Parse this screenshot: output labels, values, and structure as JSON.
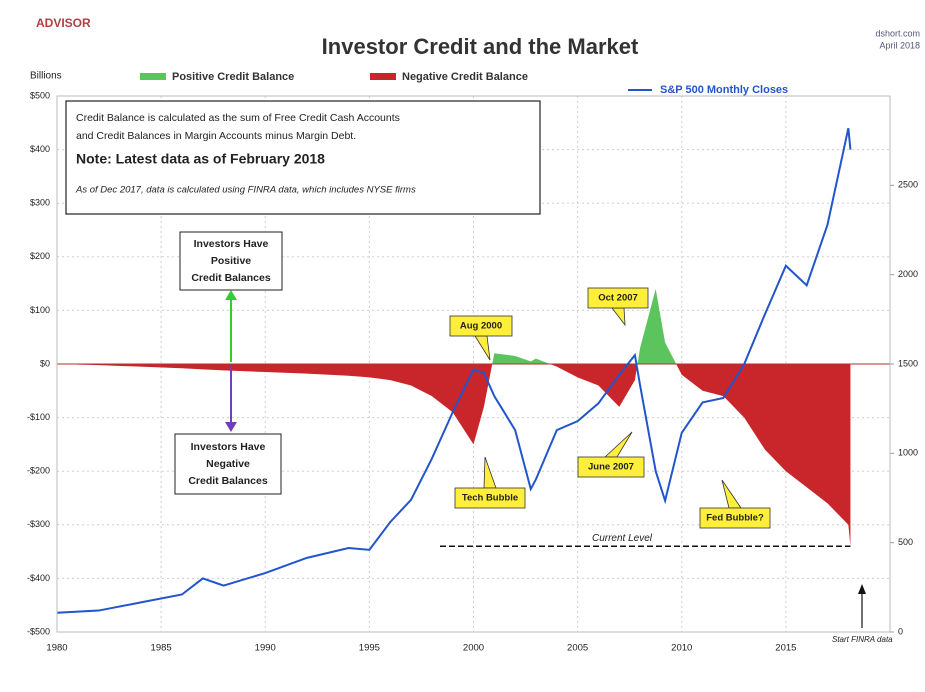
{
  "chart_data": {
    "type": "area_line",
    "title": "Investor Credit and the Market",
    "logo": "ADVISOR",
    "source": [
      "dshort.com",
      "April 2018"
    ],
    "y_label": "Billions",
    "legend": [
      {
        "label": "Positive Credit Balance",
        "color": "#5cc45c"
      },
      {
        "label": "Negative Credit Balance",
        "color": "#c9262c"
      }
    ],
    "x": [
      1980,
      1982,
      1984,
      1986,
      1987,
      1988,
      1990,
      1992,
      1994,
      1995,
      1996,
      1997,
      1998,
      1999,
      2000,
      2000.5,
      2001,
      2002,
      2002.75,
      2003,
      2004,
      2005,
      2006,
      2007,
      2007.75,
      2008,
      2008.75,
      2009.2,
      2010,
      2011,
      2012,
      2013,
      2014,
      2015,
      2016,
      2017,
      2018,
      2018.1
    ],
    "series": [
      {
        "values": [
          0,
          -2,
          -5,
          -8,
          -10,
          -12,
          -15,
          -18,
          -22,
          -25,
          -30,
          -40,
          -60,
          -90,
          -150,
          -80,
          20,
          15,
          5,
          10,
          -5,
          -25,
          -40,
          -80,
          -30,
          30,
          140,
          40,
          -20,
          -50,
          -60,
          -100,
          -160,
          -200,
          -230,
          -260,
          -300,
          -340
        ]
      },
      {
        "name": "S&P 500 Monthly Closes",
        "color": "#2255cc",
        "axis": "y2",
        "values": [
          108,
          120,
          165,
          210,
          300,
          260,
          330,
          415,
          470,
          460,
          615,
          740,
          970,
          1230,
          1470,
          1450,
          1320,
          1130,
          800,
          855,
          1130,
          1180,
          1280,
          1440,
          1550,
          1380,
          900,
          735,
          1115,
          1285,
          1310,
          1500,
          1780,
          2050,
          1940,
          2280,
          2820,
          2700
        ]
      }
    ],
    "xlim": [
      1980,
      2020
    ],
    "xticks": [
      1980,
      1985,
      1990,
      1995,
      2000,
      2005,
      2010,
      2015
    ],
    "ylim": [
      -500,
      500
    ],
    "yticks": [
      {
        "value": 500,
        "label": "$500"
      },
      {
        "value": 400,
        "label": "$400"
      },
      {
        "value": 300,
        "label": "$300"
      },
      {
        "value": 200,
        "label": "$200"
      },
      {
        "value": 100,
        "label": "$100"
      },
      {
        "value": 0,
        "label": "$0"
      },
      {
        "value": -100,
        "label": "-$100"
      },
      {
        "value": -200,
        "label": "-$200"
      },
      {
        "value": -300,
        "label": "-$300"
      },
      {
        "value": -400,
        "label": "-$400"
      },
      {
        "value": -500,
        "label": "-$500"
      }
    ],
    "y2lim": [
      0,
      3000
    ],
    "y2ticks": [
      0,
      500,
      1000,
      1500,
      2000,
      2500
    ],
    "grid": true,
    "definition_box": [
      "Credit Balance is calculated as the sum of Free Credit Cash Accounts",
      "and Credit Balances in Margin Accounts minus Margin Debt.",
      "Note: Latest data as of February 2018",
      "As of Dec 2017, data is calculated using FINRA data, which includes NYSE firms"
    ],
    "positive_box": [
      "Investors Have",
      "Positive",
      "Credit Balances"
    ],
    "negative_box": [
      "Investors Have",
      "Negative",
      "Credit Balances"
    ],
    "callouts": [
      "Aug 2000",
      "Oct 2007",
      "Tech Bubble",
      "June 2007",
      "Fed Bubble?"
    ],
    "current_level_label": "Current Level",
    "finra_note": "Start FINRA data"
  }
}
